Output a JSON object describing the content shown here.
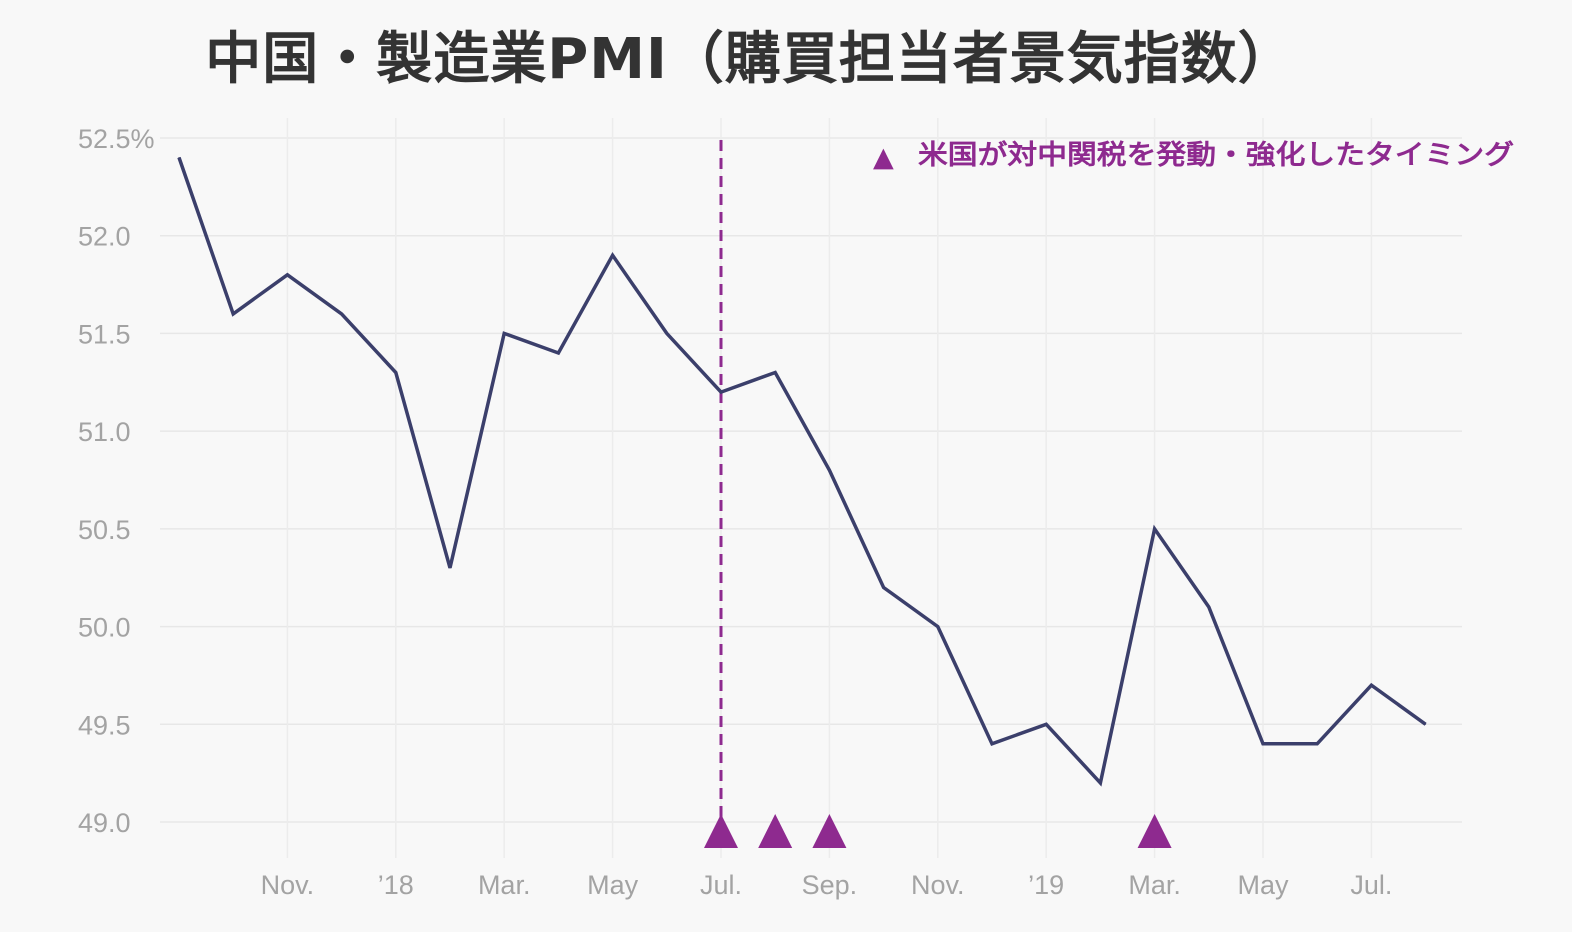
{
  "chart_data": {
    "type": "line",
    "title": "中国・製造業PMI（購買担当者景気指数）",
    "y_axis": {
      "ylim": [
        49.0,
        52.5
      ],
      "ticks": [
        {
          "value": 52.5,
          "label": "52.5%"
        },
        {
          "value": 52.0,
          "label": "52.0"
        },
        {
          "value": 51.5,
          "label": "51.5"
        },
        {
          "value": 51.0,
          "label": "51.0"
        },
        {
          "value": 50.5,
          "label": "50.5"
        },
        {
          "value": 50.0,
          "label": "50.0"
        },
        {
          "value": 49.5,
          "label": "49.5"
        },
        {
          "value": 49.0,
          "label": "49.0"
        }
      ]
    },
    "x_axis": {
      "ticks": [
        {
          "index": 2,
          "label": "Nov."
        },
        {
          "index": 4,
          "label": "’18"
        },
        {
          "index": 6,
          "label": "Mar."
        },
        {
          "index": 8,
          "label": "May"
        },
        {
          "index": 10,
          "label": "Jul."
        },
        {
          "index": 12,
          "label": "Sep."
        },
        {
          "index": 14,
          "label": "Nov."
        },
        {
          "index": 16,
          "label": "’19"
        },
        {
          "index": 18,
          "label": "Mar."
        },
        {
          "index": 20,
          "label": "May"
        },
        {
          "index": 22,
          "label": "Jul."
        }
      ]
    },
    "grid": true,
    "series": [
      {
        "color": "#3b3f6b",
        "values": [
          52.4,
          51.6,
          51.8,
          51.6,
          51.3,
          50.3,
          51.5,
          51.4,
          51.9,
          51.5,
          51.2,
          51.3,
          50.8,
          50.2,
          50.0,
          49.4,
          49.5,
          49.2,
          50.5,
          50.1,
          49.4,
          49.4,
          49.7,
          49.5
        ]
      }
    ],
    "marker_color": "#8e2a8f",
    "tariff_markers": [
      10,
      11,
      12,
      18
    ],
    "vertical_line_index": 10,
    "legend": {
      "position": "top-right",
      "symbol": "▲",
      "text": "米国が対中関税を発動・強化したタイミング"
    }
  }
}
